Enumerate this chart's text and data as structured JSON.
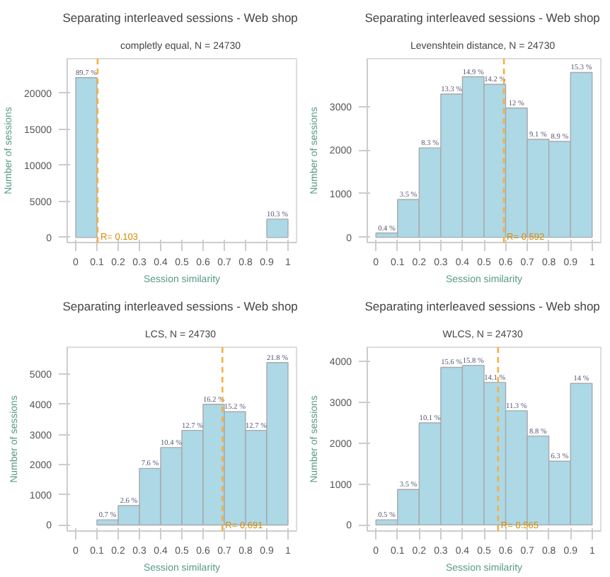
{
  "chart_data": [
    {
      "type": "histogram",
      "title": "Separating interleaved sessions -  Web shop",
      "subtitle": "completly equal, N =  24730",
      "xlabel": "Session similarity",
      "ylabel": "Number of sessions",
      "bins": [
        0,
        0.1,
        0.2,
        0.3,
        0.4,
        0.5,
        0.6,
        0.7,
        0.8,
        0.9,
        1
      ],
      "values": [
        22183,
        null,
        null,
        null,
        null,
        null,
        null,
        null,
        null,
        2547
      ],
      "color": "#add8e6",
      "xlim": [
        -0.04,
        1.04
      ],
      "ylim": [
        -700,
        24800
      ],
      "xticks": [
        0,
        0.1,
        0.2,
        0.3,
        0.4,
        0.5,
        0.6,
        0.7,
        0.8,
        0.9,
        1
      ],
      "yticks": [
        0,
        5000,
        10000,
        15000,
        20000
      ],
      "ref_lines": [
        {
          "axis": "x",
          "value": 0.103,
          "label": "R= 0.103",
          "color": "#f5b041",
          "line_style": "dashed"
        }
      ],
      "grid": false,
      "annotations": [
        {
          "text": "89.7 %",
          "x": 0.05,
          "y": 22183
        },
        {
          "text": "10.3 %",
          "x": 0.95,
          "y": 2547
        }
      ]
    },
    {
      "type": "histogram",
      "title": "Separating interleaved sessions -  Web shop",
      "subtitle": "Levenshtein distance, N =  24730",
      "xlabel": "Session similarity",
      "ylabel": "Number of sessions",
      "bins": [
        0,
        0.1,
        0.2,
        0.3,
        0.4,
        0.5,
        0.6,
        0.7,
        0.8,
        0.9,
        1
      ],
      "values": [
        99,
        866,
        2053,
        3289,
        3685,
        3512,
        2968,
        2250,
        2201,
        3784
      ],
      "color": "#add8e6",
      "xlim": [
        -0.04,
        1.04
      ],
      "ylim": [
        -120,
        4100
      ],
      "xticks": [
        0,
        0.1,
        0.2,
        0.3,
        0.4,
        0.5,
        0.6,
        0.7,
        0.8,
        0.9,
        1
      ],
      "yticks": [
        0,
        1000,
        2000,
        3000
      ],
      "ref_lines": [
        {
          "axis": "x",
          "value": 0.592,
          "label": "R= 0.592",
          "color": "#f5b041",
          "line_style": "dashed"
        }
      ],
      "grid": false,
      "annotations": [
        {
          "text": "0.4 %",
          "x": 0.05,
          "y": 99
        },
        {
          "text": "3.5 %",
          "x": 0.15,
          "y": 866
        },
        {
          "text": "8.3 %",
          "x": 0.25,
          "y": 2053
        },
        {
          "text": "13.3 %",
          "x": 0.35,
          "y": 3289
        },
        {
          "text": "14.9 %",
          "x": 0.45,
          "y": 3685
        },
        {
          "text": "14.2 %",
          "x": 0.55,
          "y": 3512
        },
        {
          "text": "12 %",
          "x": 0.65,
          "y": 2968
        },
        {
          "text": "9.1 %",
          "x": 0.75,
          "y": 2250
        },
        {
          "text": "8.9 %",
          "x": 0.85,
          "y": 2201
        },
        {
          "text": "15.3 %",
          "x": 0.95,
          "y": 3784
        }
      ]
    },
    {
      "type": "histogram",
      "title": "Separating interleaved sessions -  Web shop",
      "subtitle": "LCS, N =  24730",
      "xlabel": "Session similarity",
      "ylabel": "Number of sessions",
      "bins": [
        0,
        0.1,
        0.2,
        0.3,
        0.4,
        0.5,
        0.6,
        0.7,
        0.8,
        0.9,
        1
      ],
      "values": [
        null,
        173,
        643,
        1879,
        2572,
        3141,
        4006,
        3759,
        3141,
        5391
      ],
      "color": "#add8e6",
      "xlim": [
        -0.04,
        1.04
      ],
      "ylim": [
        -200,
        5900
      ],
      "xticks": [
        0,
        0.1,
        0.2,
        0.3,
        0.4,
        0.5,
        0.6,
        0.7,
        0.8,
        0.9,
        1
      ],
      "yticks": [
        0,
        1000,
        2000,
        3000,
        4000,
        5000
      ],
      "ref_lines": [
        {
          "axis": "x",
          "value": 0.691,
          "label": "R= 0.691",
          "color": "#f5b041",
          "line_style": "dashed"
        }
      ],
      "grid": false,
      "annotations": [
        {
          "text": "0.7 %",
          "x": 0.15,
          "y": 173
        },
        {
          "text": "2.6 %",
          "x": 0.25,
          "y": 643
        },
        {
          "text": "7.6 %",
          "x": 0.35,
          "y": 1879
        },
        {
          "text": "10.4 %",
          "x": 0.45,
          "y": 2572
        },
        {
          "text": "12.7 %",
          "x": 0.55,
          "y": 3141
        },
        {
          "text": "16.2 %",
          "x": 0.65,
          "y": 4006
        },
        {
          "text": "15.2 %",
          "x": 0.75,
          "y": 3759
        },
        {
          "text": "12.7 %",
          "x": 0.85,
          "y": 3141
        },
        {
          "text": "21.8 %",
          "x": 0.95,
          "y": 5391
        }
      ]
    },
    {
      "type": "histogram",
      "title": "Separating interleaved sessions -  Web shop",
      "subtitle": "WLCS, N =  24730",
      "xlabel": "Session similarity",
      "ylabel": "Number of sessions",
      "bins": [
        0,
        0.1,
        0.2,
        0.3,
        0.4,
        0.5,
        0.6,
        0.7,
        0.8,
        0.9,
        1
      ],
      "values": [
        124,
        866,
        2498,
        3858,
        3907,
        3487,
        2794,
        2176,
        1558,
        3462
      ],
      "color": "#add8e6",
      "xlim": [
        -0.04,
        1.04
      ],
      "ylim": [
        -150,
        4350
      ],
      "xticks": [
        0,
        0.1,
        0.2,
        0.3,
        0.4,
        0.5,
        0.6,
        0.7,
        0.8,
        0.9,
        1
      ],
      "yticks": [
        0,
        1000,
        2000,
        3000,
        4000
      ],
      "ref_lines": [
        {
          "axis": "x",
          "value": 0.565,
          "label": "R= 0.565",
          "color": "#f5b041",
          "line_style": "dashed"
        }
      ],
      "grid": false,
      "annotations": [
        {
          "text": "0.5 %",
          "x": 0.05,
          "y": 124
        },
        {
          "text": "3.5 %",
          "x": 0.15,
          "y": 866
        },
        {
          "text": "10.1 %",
          "x": 0.25,
          "y": 2498
        },
        {
          "text": "15.6 %",
          "x": 0.35,
          "y": 3858
        },
        {
          "text": "15.8 %",
          "x": 0.45,
          "y": 3907
        },
        {
          "text": "14.1 %",
          "x": 0.55,
          "y": 3487
        },
        {
          "text": "11.3 %",
          "x": 0.65,
          "y": 2794
        },
        {
          "text": "8.8 %",
          "x": 0.75,
          "y": 2176
        },
        {
          "text": "6.3 %",
          "x": 0.85,
          "y": 1558
        },
        {
          "text": "14 %",
          "x": 0.95,
          "y": 3462
        }
      ]
    }
  ]
}
